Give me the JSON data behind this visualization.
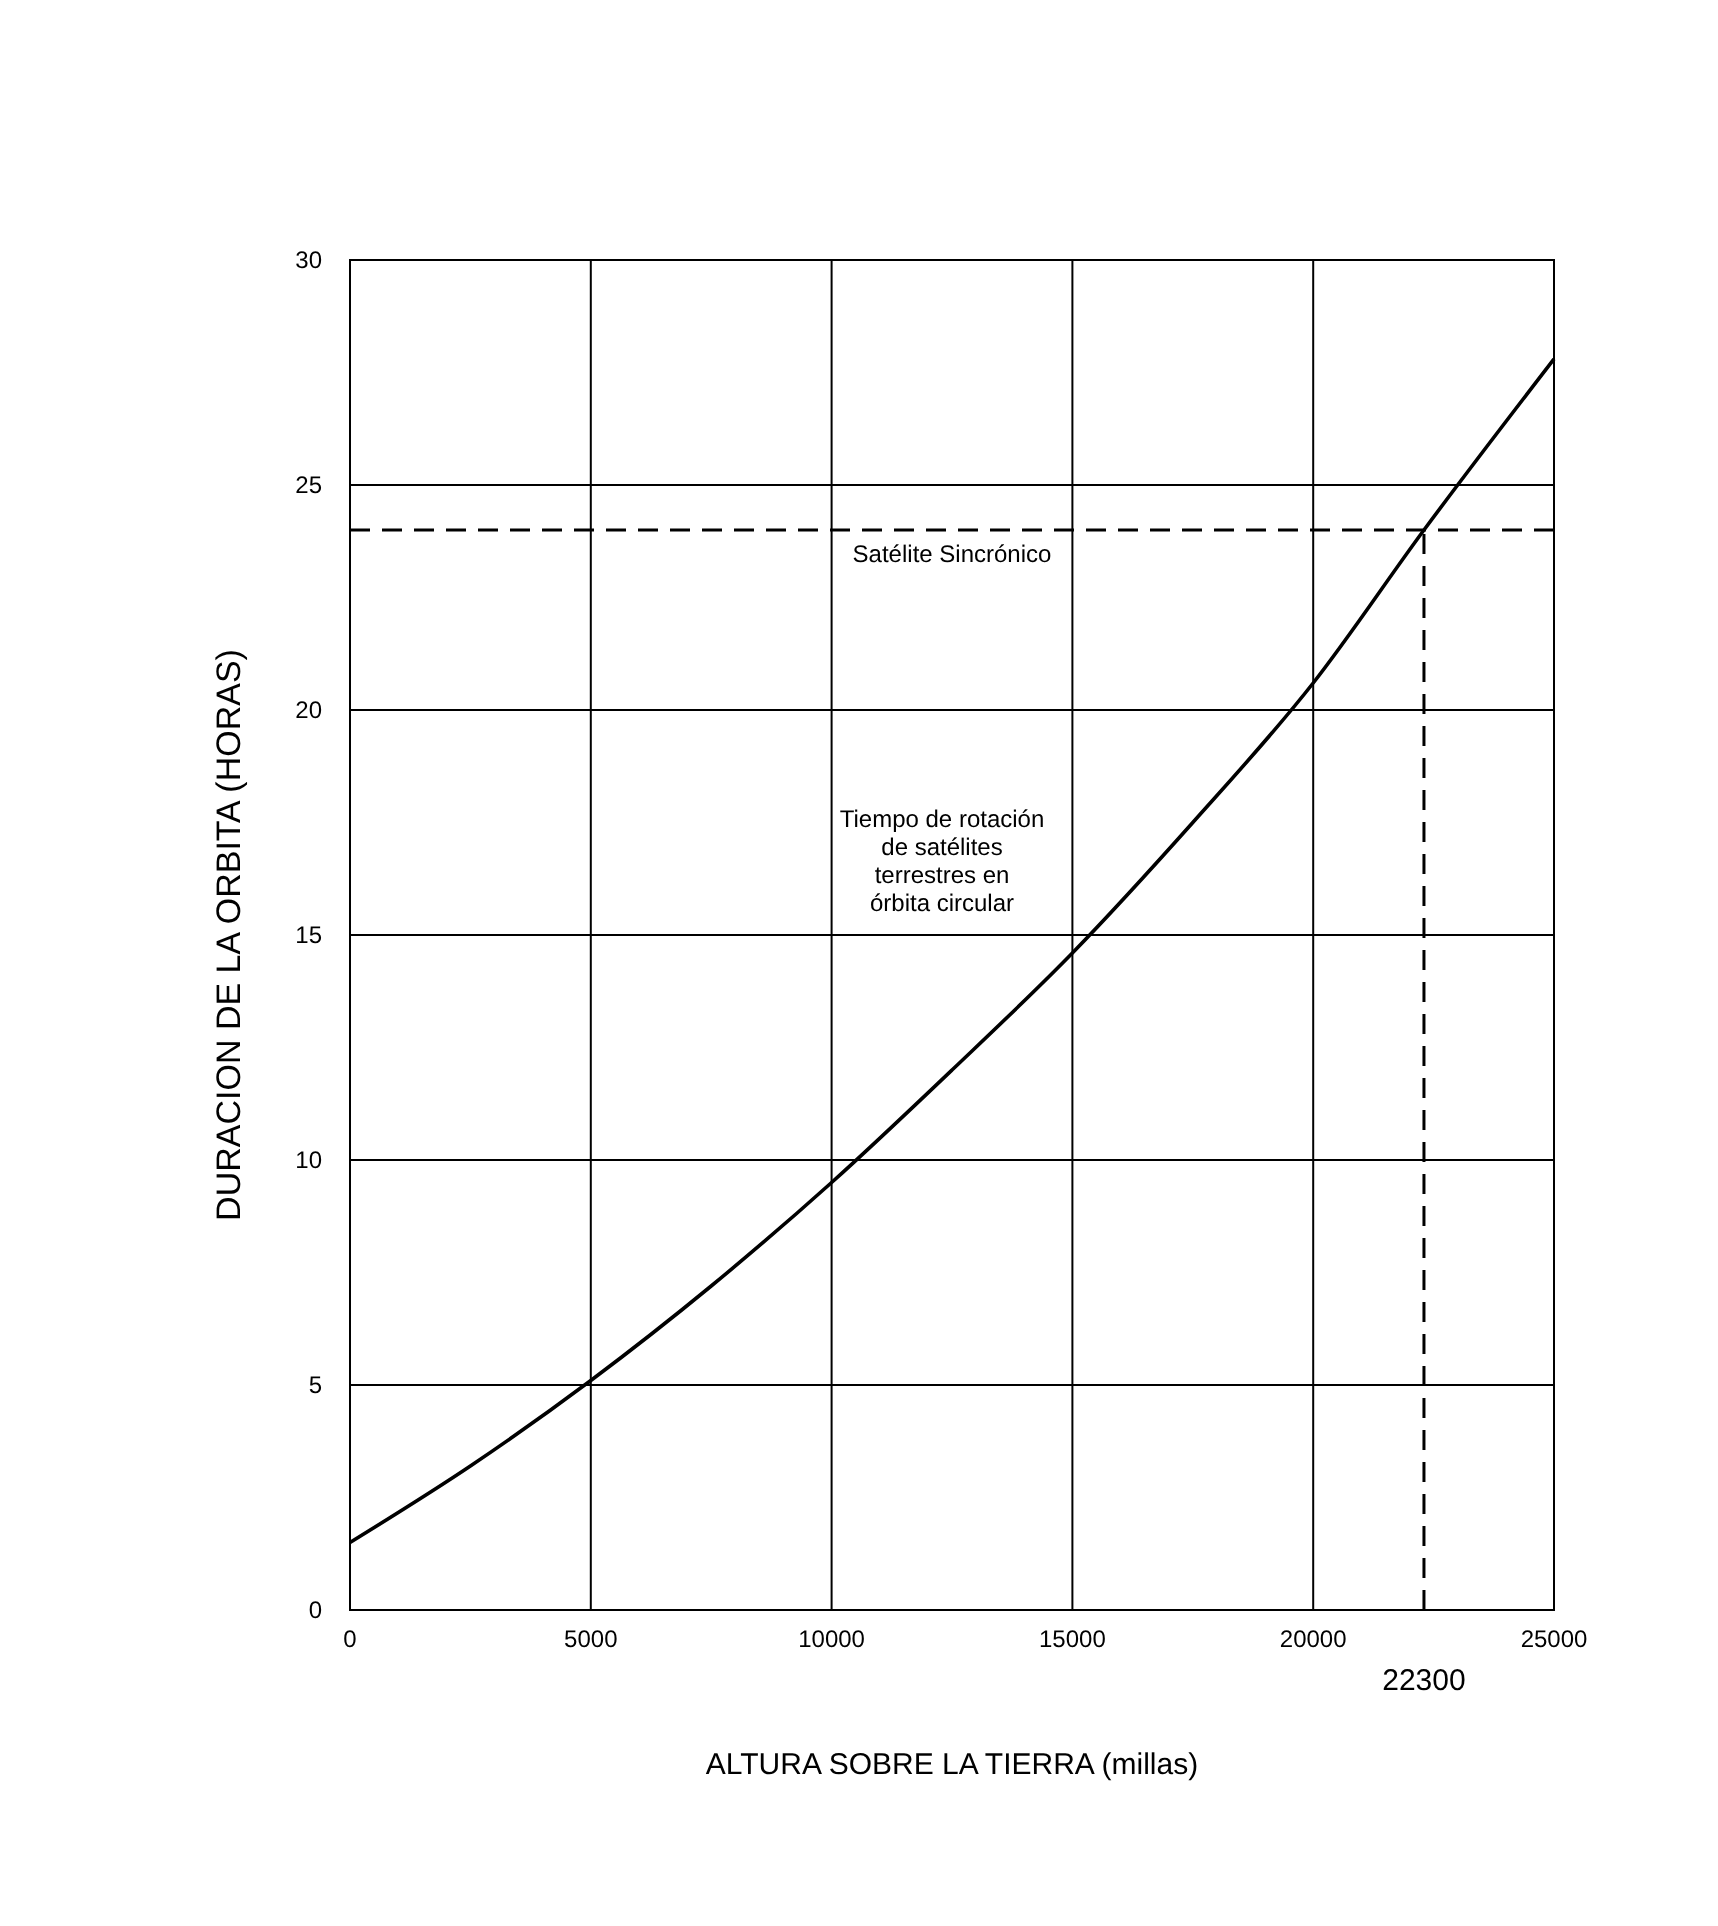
{
  "chart_data": {
    "type": "line",
    "xlabel": "ALTURA SOBRE LA TIERRA (millas)",
    "ylabel": "DURACION DE LA ORBITA (HORAS)",
    "x": [
      0,
      2500,
      5000,
      7500,
      10000,
      12500,
      15000,
      17500,
      20000,
      22300,
      25000
    ],
    "series": [
      {
        "color": "#000000",
        "values": [
          1.5,
          3.2,
          5.1,
          7.2,
          9.5,
          12.0,
          14.6,
          17.5,
          20.6,
          24.0,
          27.8
        ]
      }
    ],
    "xlim": [
      0,
      25000
    ],
    "xticks": [
      0,
      5000,
      10000,
      15000,
      20000,
      25000
    ],
    "ylim": [
      0,
      30
    ],
    "yticks": [
      0,
      5,
      10,
      15,
      20,
      25,
      30
    ],
    "grid": true,
    "marker": "none",
    "line_style": "solid",
    "ref_lines": [
      {
        "axis": "y",
        "value": 24,
        "label": "Satélite Sincrónico",
        "line_style": "dashed",
        "color": "#000000"
      },
      {
        "axis": "x",
        "value": 22300,
        "label": "22300",
        "line_style": "dashed",
        "color": "#000000"
      }
    ],
    "annotations": [
      "Tiempo de rotación\nde satélites\nterrestres en\nórbita circular"
    ]
  }
}
